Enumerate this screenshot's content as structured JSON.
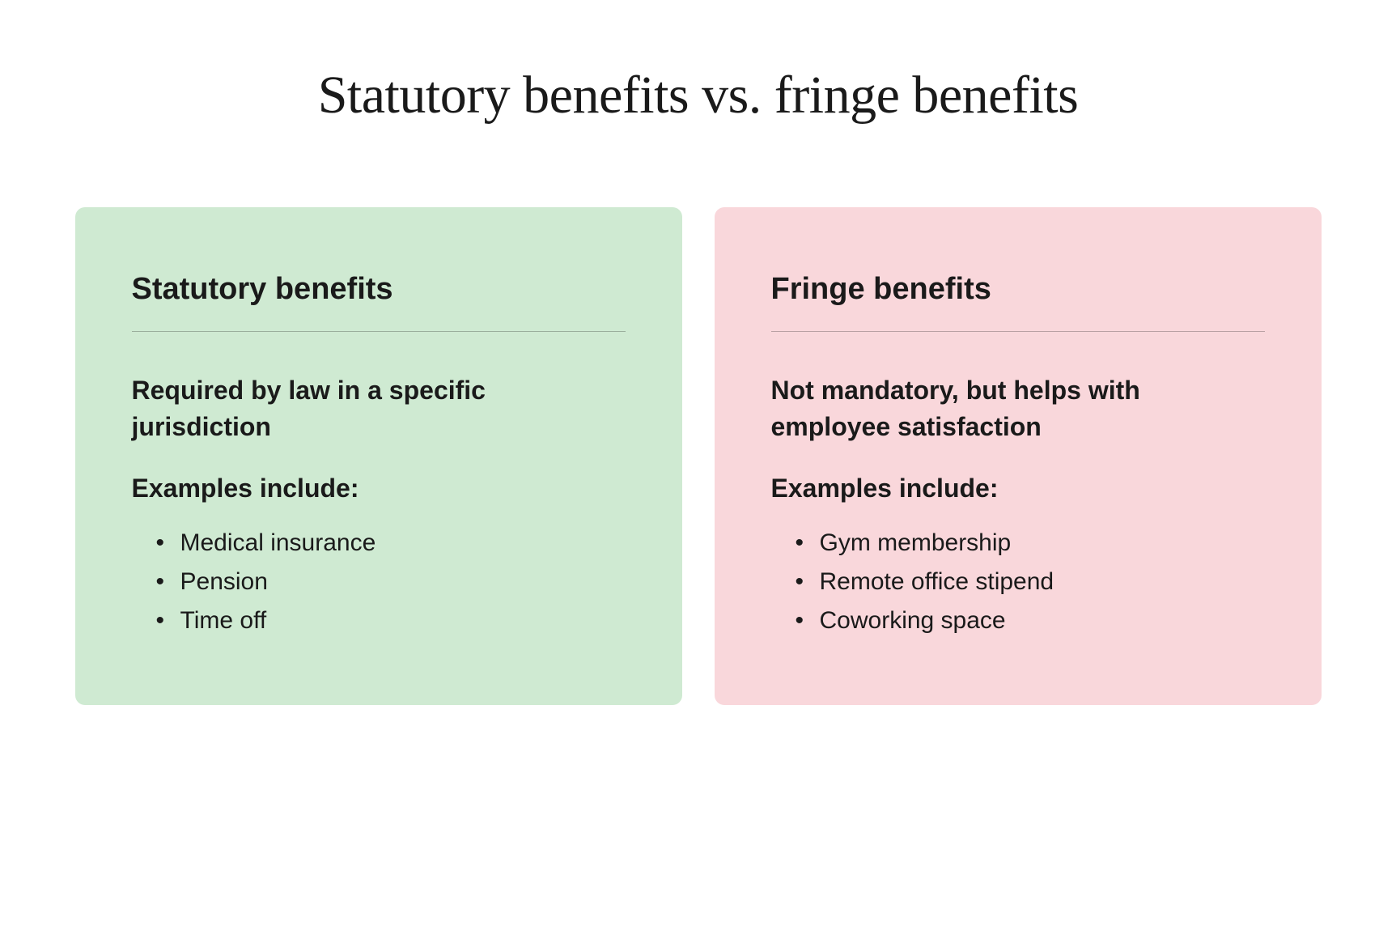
{
  "page_title": "Statutory benefits vs. fringe benefits",
  "title_fontsize": "66px",
  "cards": [
    {
      "title": "Statutory benefits",
      "background_color": "#cfead2",
      "description": "Required by law in a specific jurisdiction",
      "examples_label": "Examples include:",
      "examples": [
        "Medical insurance",
        "Pension",
        "Time off"
      ]
    },
    {
      "title": "Fringe benefits",
      "background_color": "#f9d7db",
      "description": "Not mandatory, but helps with employee satisfaction",
      "examples_label": "Examples include:",
      "examples": [
        "Gym membership",
        "Remote office stipend",
        "Coworking space"
      ]
    }
  ],
  "typography": {
    "card_title_fontsize": "38px",
    "description_fontsize": "32px",
    "examples_label_fontsize": "32px",
    "list_item_fontsize": "30px"
  }
}
